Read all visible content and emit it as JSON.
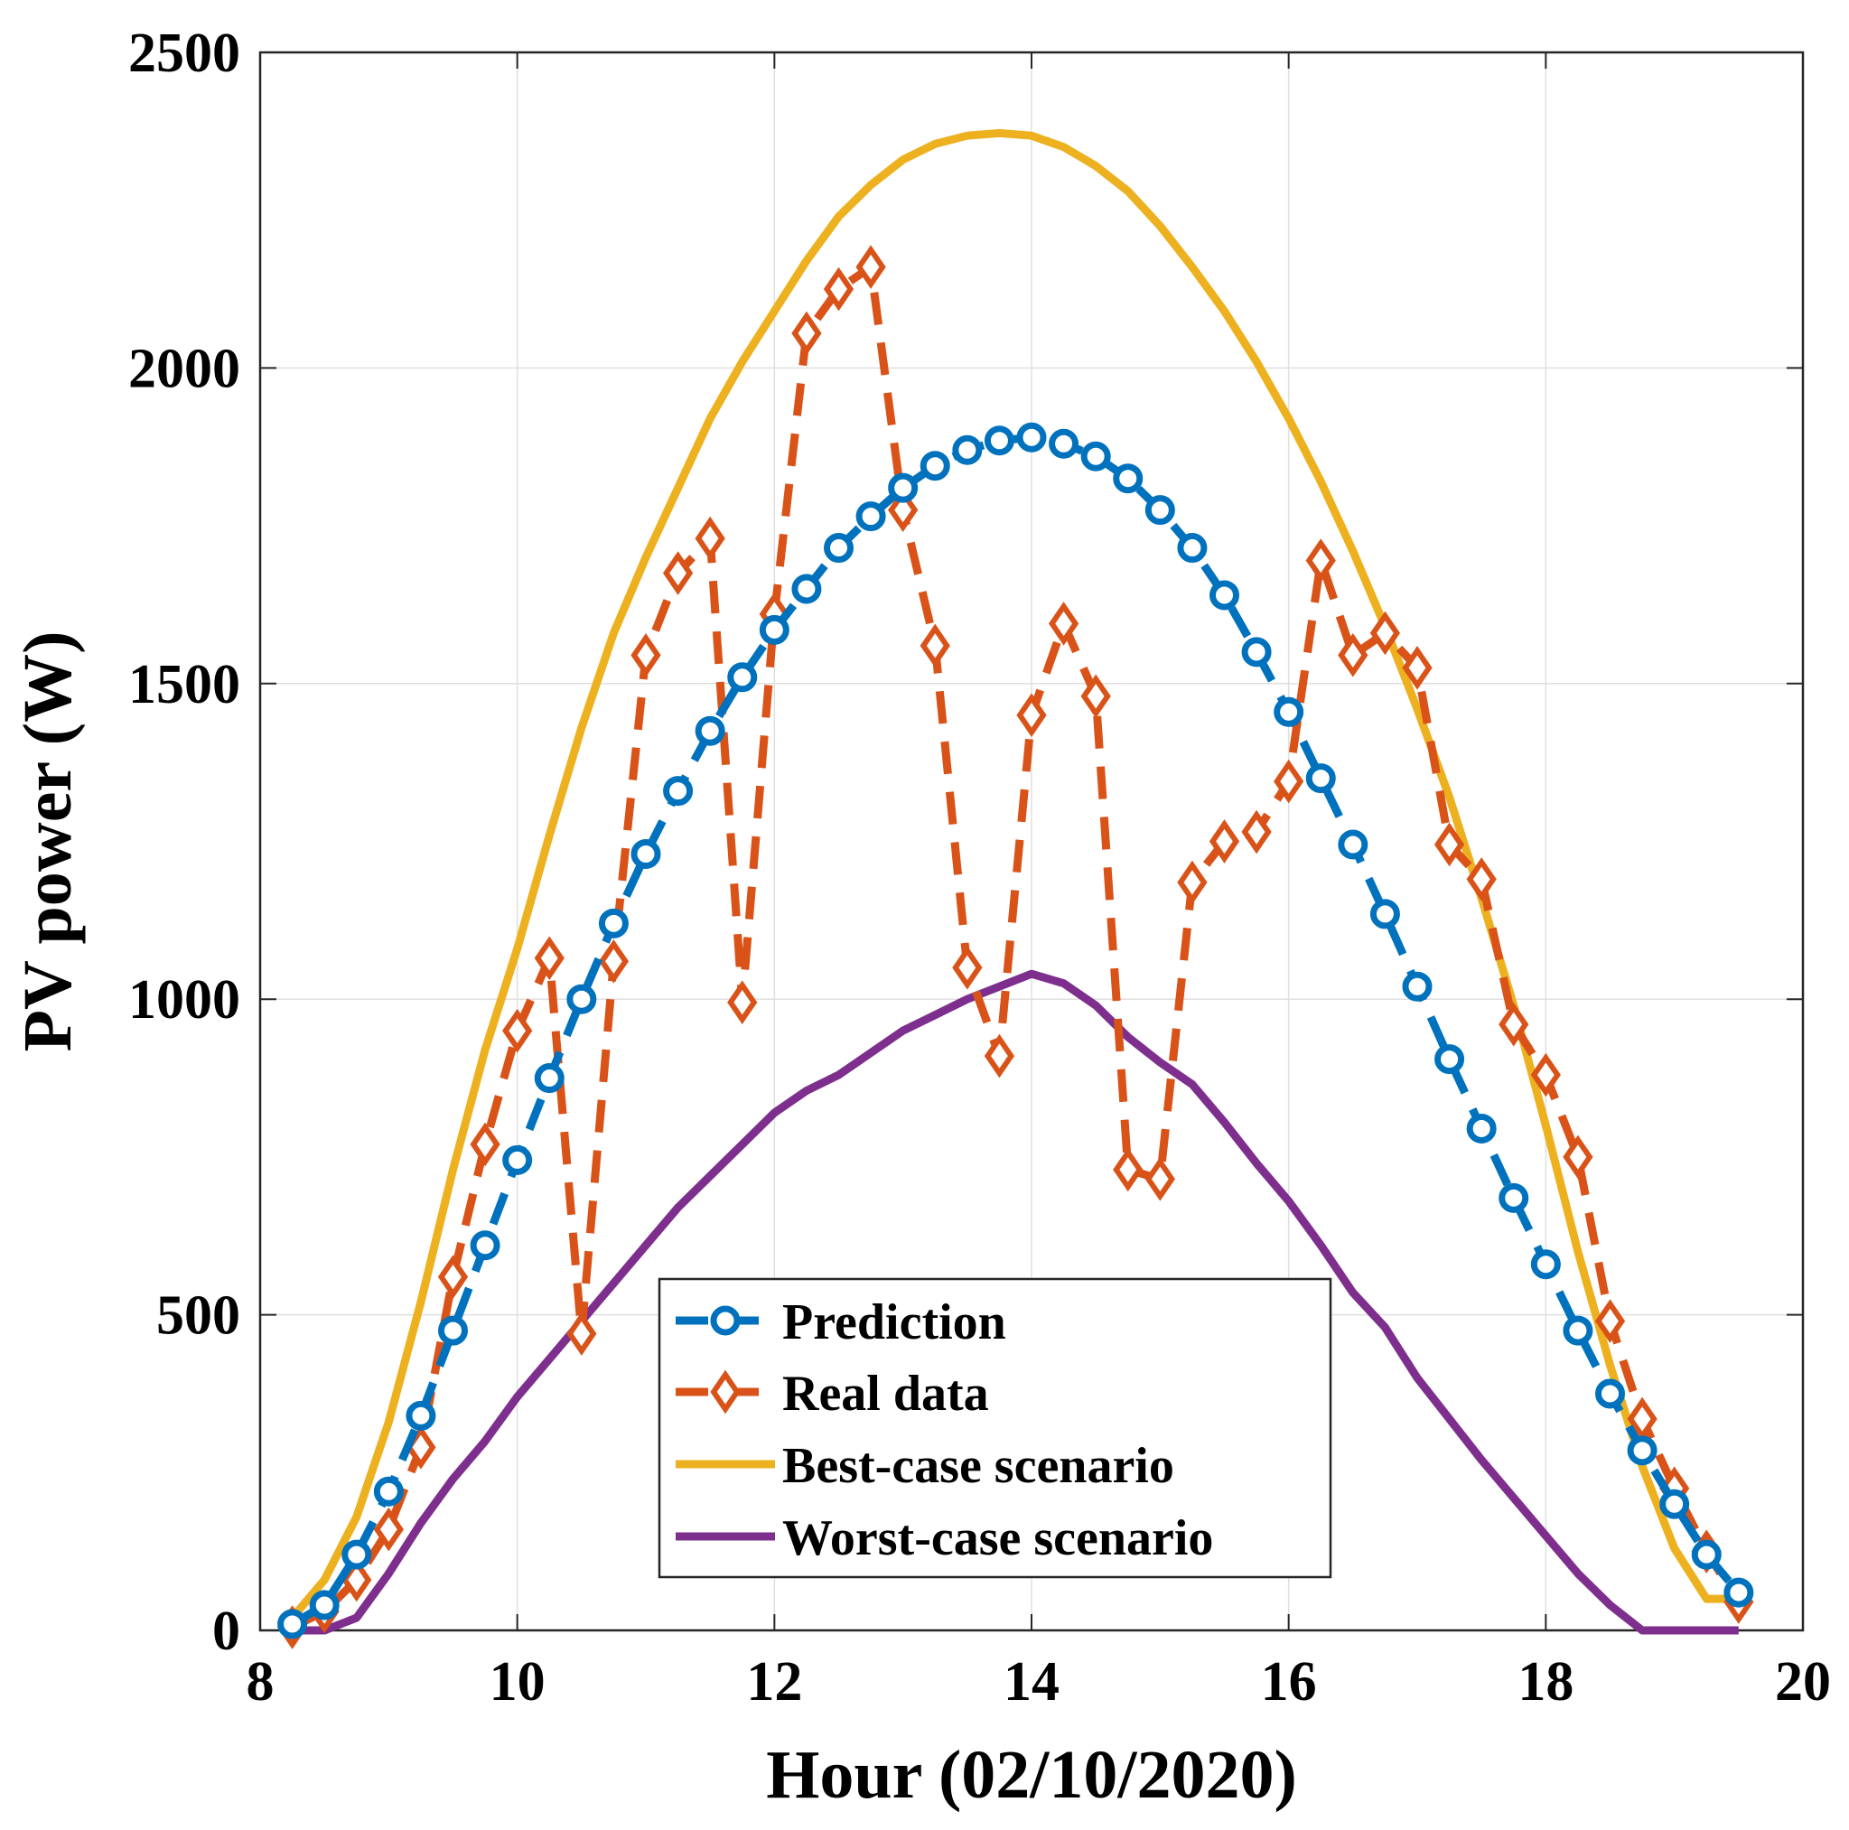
{
  "chart_data": {
    "type": "line",
    "title": "",
    "xlabel": "Hour (02/10/2020)",
    "ylabel": "PV power (W)",
    "xlim": [
      8,
      20
    ],
    "ylim": [
      0,
      2500
    ],
    "xticks": [
      8,
      10,
      12,
      14,
      16,
      18,
      20
    ],
    "yticks": [
      0,
      500,
      1000,
      1500,
      2000,
      2500
    ],
    "grid": true,
    "legend_position": "bottom-center",
    "x": [
      8.25,
      8.5,
      8.75,
      9.0,
      9.25,
      9.5,
      9.75,
      10.0,
      10.25,
      10.5,
      10.75,
      11.0,
      11.25,
      11.5,
      11.75,
      12.0,
      12.25,
      12.5,
      12.75,
      13.0,
      13.25,
      13.5,
      13.75,
      14.0,
      14.25,
      14.5,
      14.75,
      15.0,
      15.25,
      15.5,
      15.75,
      16.0,
      16.25,
      16.5,
      16.75,
      17.0,
      17.25,
      17.5,
      17.75,
      18.0,
      18.25,
      18.5,
      18.75,
      19.0,
      19.25,
      19.5
    ],
    "series": [
      {
        "name": "Prediction",
        "color": "#0072BD",
        "style": "dashed-circle-markers",
        "values": [
          10,
          40,
          120,
          220,
          340,
          475,
          610,
          745,
          875,
          1000,
          1120,
          1230,
          1330,
          1425,
          1510,
          1585,
          1650,
          1715,
          1765,
          1810,
          1845,
          1870,
          1885,
          1890,
          1880,
          1860,
          1825,
          1775,
          1715,
          1640,
          1550,
          1455,
          1350,
          1245,
          1135,
          1020,
          905,
          795,
          685,
          580,
          475,
          375,
          285,
          200,
          120,
          60
        ]
      },
      {
        "name": "Real data",
        "color": "#D95319",
        "style": "dashed-diamond-markers",
        "values": [
          5,
          30,
          80,
          160,
          290,
          560,
          770,
          950,
          1065,
          470,
          1060,
          1545,
          1675,
          1730,
          995,
          1610,
          2055,
          2125,
          2160,
          1775,
          1560,
          1050,
          910,
          1450,
          1595,
          1480,
          730,
          715,
          1185,
          1250,
          1265,
          1345,
          1695,
          1545,
          1580,
          1525,
          1245,
          1190,
          960,
          880,
          750,
          490,
          335,
          225,
          125,
          45
        ]
      },
      {
        "name": "Best-case scenario",
        "color": "#EDB120",
        "style": "solid",
        "values": [
          20,
          80,
          180,
          330,
          520,
          730,
          920,
          1080,
          1260,
          1430,
          1580,
          1700,
          1810,
          1920,
          2010,
          2090,
          2170,
          2240,
          2290,
          2330,
          2355,
          2368,
          2372,
          2368,
          2350,
          2320,
          2280,
          2225,
          2160,
          2090,
          2010,
          1920,
          1820,
          1710,
          1590,
          1460,
          1320,
          1160,
          990,
          800,
          600,
          420,
          260,
          130,
          50,
          50
        ]
      },
      {
        "name": "Worst-case scenario",
        "color": "#7E2F8E",
        "style": "solid",
        "values": [
          0,
          0,
          20,
          90,
          170,
          240,
          300,
          370,
          430,
          490,
          550,
          610,
          670,
          720,
          770,
          820,
          855,
          880,
          915,
          950,
          975,
          1000,
          1020,
          1040,
          1025,
          990,
          940,
          900,
          865,
          805,
          740,
          680,
          610,
          535,
          480,
          400,
          335,
          270,
          210,
          150,
          90,
          40,
          0,
          0,
          0,
          0
        ]
      }
    ]
  }
}
